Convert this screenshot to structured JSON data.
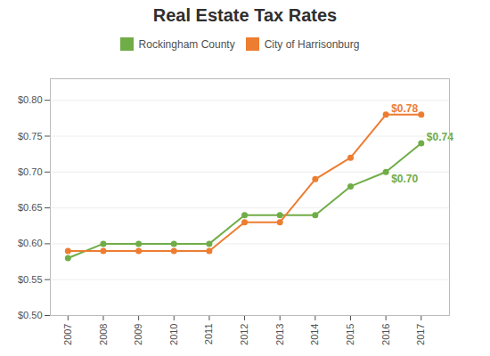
{
  "chart_data": {
    "type": "line",
    "title": "Real Estate Tax Rates",
    "x": [
      2007,
      2008,
      2009,
      2010,
      2011,
      2012,
      2013,
      2014,
      2015,
      2016,
      2017
    ],
    "series": [
      {
        "name": "Rockingham County",
        "color": "#70ad47",
        "marker": "circle",
        "line_style": "solid",
        "values": [
          0.58,
          0.6,
          0.6,
          0.6,
          0.6,
          0.64,
          0.64,
          0.64,
          0.68,
          0.7,
          0.74
        ]
      },
      {
        "name": "City of Harrisonburg",
        "color": "#ed7d31",
        "marker": "circle",
        "line_style": "solid",
        "values": [
          0.59,
          0.59,
          0.59,
          0.59,
          0.59,
          0.63,
          0.63,
          0.69,
          0.72,
          0.78,
          0.78
        ]
      }
    ],
    "xlim": [
      2006.5,
      2017.8
    ],
    "xticks": [
      2007,
      2008,
      2009,
      2010,
      2011,
      2012,
      2013,
      2014,
      2015,
      2016,
      2017
    ],
    "ylim": [
      0.5,
      0.83
    ],
    "yticks": [
      {
        "value": 0.5,
        "label": "$0.50"
      },
      {
        "value": 0.55,
        "label": "$0.55"
      },
      {
        "value": 0.6,
        "label": "$0.60"
      },
      {
        "value": 0.65,
        "label": "$0.65"
      },
      {
        "value": 0.7,
        "label": "$0.70"
      },
      {
        "value": 0.75,
        "label": "$0.75"
      },
      {
        "value": 0.8,
        "label": "$0.80"
      }
    ],
    "annotations": [
      {
        "text": "$0.78",
        "x": 2016,
        "y": 0.78,
        "color": "#ed7d31"
      },
      {
        "text": "$0.74",
        "x": 2017,
        "y": 0.74,
        "color": "#70ad47"
      },
      {
        "text": "$0.70",
        "x": 2016,
        "y": 0.7,
        "color": "#70ad47"
      }
    ],
    "grid": true,
    "legend": "top"
  }
}
